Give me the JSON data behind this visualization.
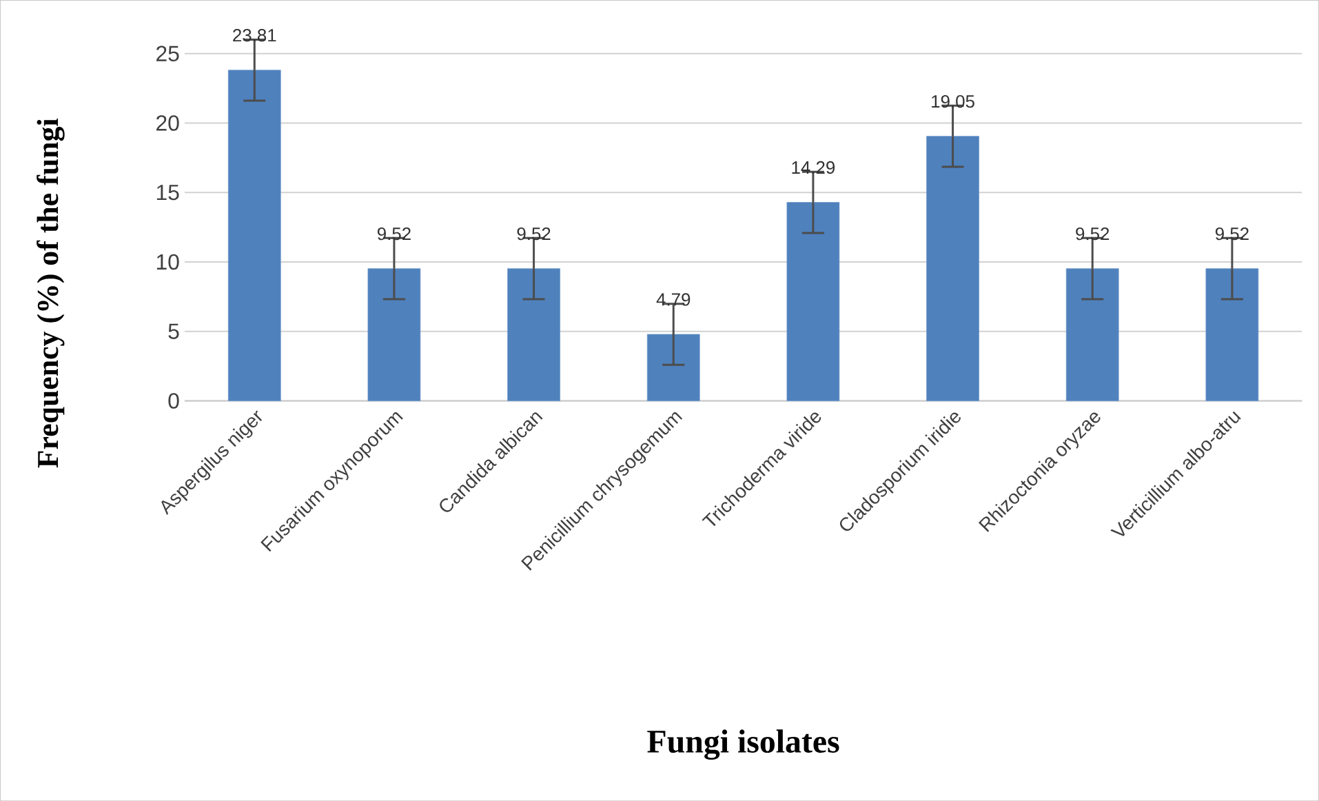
{
  "chart_data": {
    "type": "bar",
    "xlabel": "Fungi isolates",
    "ylabel": "Frequency (%) of the fungi",
    "categories": [
      "Aspergilus niger",
      "Fusarium oxynoporum",
      "Candida  albican",
      "Penicillium chrysogemum",
      "Trichoderma viride",
      "Cladosporium iridie",
      "Rhizoctonia oryzae",
      "Verticillium albo-atru"
    ],
    "values": [
      23.81,
      9.52,
      9.52,
      4.79,
      14.29,
      19.05,
      9.52,
      9.52
    ],
    "errors": [
      2.2,
      2.2,
      2.2,
      2.2,
      2.2,
      2.2,
      2.2,
      2.2
    ],
    "color": "#4f81bd",
    "data_labels": true,
    "ylim": [
      0,
      25
    ],
    "yticks": [
      0,
      5,
      10,
      15,
      20,
      25
    ],
    "grid": "y"
  }
}
